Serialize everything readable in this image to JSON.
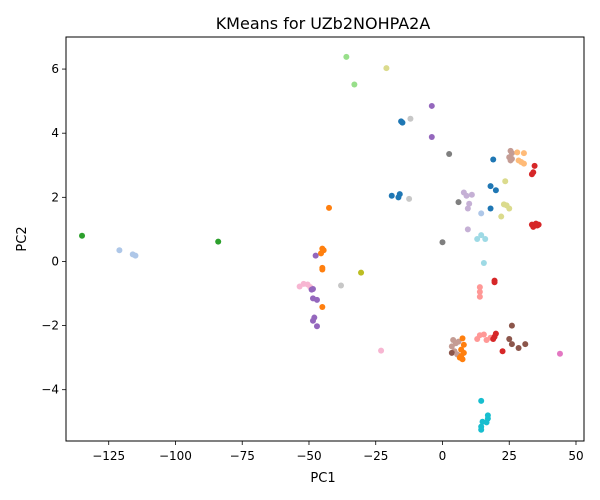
{
  "chart_data": {
    "type": "scatter",
    "title": "KMeans for UZb2NOHPA2A",
    "xlabel": "PC1",
    "ylabel": "PC2",
    "xlim": [
      -141,
      53
    ],
    "ylim": [
      -5.6,
      7.0
    ],
    "xticks": [
      -125,
      -100,
      -75,
      -50,
      -25,
      0,
      25,
      50
    ],
    "yticks": [
      -4,
      -2,
      0,
      2,
      4,
      6
    ],
    "xtick_labels": [
      "−125",
      "−100",
      "−75",
      "−50",
      "−25",
      "0",
      "25",
      "50"
    ],
    "ytick_labels": [
      "−4",
      "−2",
      "0",
      "2",
      "4",
      "6"
    ],
    "grid": false,
    "marker_size": 3,
    "points": [
      {
        "x": -135,
        "y": 0.8,
        "color": "#2ca02c"
      },
      {
        "x": -84,
        "y": 0.62,
        "color": "#2ca02c"
      },
      {
        "x": -121,
        "y": 0.35,
        "color": "#aec7e8"
      },
      {
        "x": -116,
        "y": 0.22,
        "color": "#aec7e8"
      },
      {
        "x": -115,
        "y": 0.18,
        "color": "#aec7e8"
      },
      {
        "x": -36,
        "y": 6.38,
        "color": "#98df8a"
      },
      {
        "x": -21,
        "y": 6.03,
        "color": "#dbdb8d"
      },
      {
        "x": -33,
        "y": 5.52,
        "color": "#98df8a"
      },
      {
        "x": -4,
        "y": 4.85,
        "color": "#9467bd"
      },
      {
        "x": -4,
        "y": 3.88,
        "color": "#9467bd"
      },
      {
        "x": -15.5,
        "y": 4.37,
        "color": "#1f77b4"
      },
      {
        "x": -15,
        "y": 4.33,
        "color": "#1f77b4"
      },
      {
        "x": -12,
        "y": 4.45,
        "color": "#c7c7c7"
      },
      {
        "x": 2.5,
        "y": 3.35,
        "color": "#7f7f7f"
      },
      {
        "x": -19,
        "y": 2.05,
        "color": "#1f77b4"
      },
      {
        "x": -16,
        "y": 2.1,
        "color": "#1f77b4"
      },
      {
        "x": -16.5,
        "y": 2.0,
        "color": "#1f77b4"
      },
      {
        "x": -12.5,
        "y": 1.95,
        "color": "#c7c7c7"
      },
      {
        "x": -42.5,
        "y": 1.67,
        "color": "#ff7f0e"
      },
      {
        "x": 6,
        "y": 1.85,
        "color": "#7f7f7f"
      },
      {
        "x": 8,
        "y": 2.15,
        "color": "#c5b0d5"
      },
      {
        "x": 9,
        "y": 2.05,
        "color": "#c5b0d5"
      },
      {
        "x": 11,
        "y": 2.08,
        "color": "#c5b0d5"
      },
      {
        "x": 10,
        "y": 1.8,
        "color": "#c5b0d5"
      },
      {
        "x": 9.5,
        "y": 1.65,
        "color": "#c5b0d5"
      },
      {
        "x": 9.5,
        "y": 1.0,
        "color": "#c5b0d5"
      },
      {
        "x": 0,
        "y": 0.6,
        "color": "#7f7f7f"
      },
      {
        "x": 19,
        "y": 3.18,
        "color": "#1f77b4"
      },
      {
        "x": 18,
        "y": 2.35,
        "color": "#1f77b4"
      },
      {
        "x": 20,
        "y": 2.22,
        "color": "#1f77b4"
      },
      {
        "x": 18,
        "y": 1.65,
        "color": "#1f77b4"
      },
      {
        "x": 14.5,
        "y": 1.5,
        "color": "#aec7e8"
      },
      {
        "x": 13,
        "y": 0.7,
        "color": "#9edae5"
      },
      {
        "x": 14.5,
        "y": 0.82,
        "color": "#9edae5"
      },
      {
        "x": 16,
        "y": 0.7,
        "color": "#9edae5"
      },
      {
        "x": 15.5,
        "y": -0.05,
        "color": "#9edae5"
      },
      {
        "x": 23.5,
        "y": 2.5,
        "color": "#dbdb8d"
      },
      {
        "x": 23,
        "y": 1.78,
        "color": "#dbdb8d"
      },
      {
        "x": 24,
        "y": 1.75,
        "color": "#dbdb8d"
      },
      {
        "x": 25,
        "y": 1.65,
        "color": "#dbdb8d"
      },
      {
        "x": 22,
        "y": 1.4,
        "color": "#dbdb8d"
      },
      {
        "x": 25.5,
        "y": 3.45,
        "color": "#c49c94"
      },
      {
        "x": 26,
        "y": 3.38,
        "color": "#c49c94"
      },
      {
        "x": 25,
        "y": 3.25,
        "color": "#c49c94"
      },
      {
        "x": 26,
        "y": 3.2,
        "color": "#c49c94"
      },
      {
        "x": 25.5,
        "y": 3.15,
        "color": "#c49c94"
      },
      {
        "x": 28,
        "y": 3.4,
        "color": "#ffbb78"
      },
      {
        "x": 30.5,
        "y": 3.38,
        "color": "#ffbb78"
      },
      {
        "x": 28.5,
        "y": 3.15,
        "color": "#ffbb78"
      },
      {
        "x": 29.5,
        "y": 3.1,
        "color": "#ffbb78"
      },
      {
        "x": 30.5,
        "y": 3.05,
        "color": "#ffbb78"
      },
      {
        "x": 34.5,
        "y": 2.98,
        "color": "#d62728"
      },
      {
        "x": 33.5,
        "y": 2.72,
        "color": "#d62728"
      },
      {
        "x": 34,
        "y": 2.78,
        "color": "#d62728"
      },
      {
        "x": 33.5,
        "y": 1.15,
        "color": "#d62728"
      },
      {
        "x": 34,
        "y": 1.08,
        "color": "#d62728"
      },
      {
        "x": 35,
        "y": 1.18,
        "color": "#d62728"
      },
      {
        "x": 36,
        "y": 1.15,
        "color": "#d62728"
      },
      {
        "x": 35.5,
        "y": 1.12,
        "color": "#d62728"
      },
      {
        "x": -45,
        "y": 0.4,
        "color": "#ff7f0e"
      },
      {
        "x": -44.5,
        "y": 0.35,
        "color": "#ff7f0e"
      },
      {
        "x": -45.5,
        "y": 0.25,
        "color": "#ff7f0e"
      },
      {
        "x": -47.5,
        "y": 0.18,
        "color": "#9467bd"
      },
      {
        "x": -45,
        "y": -0.2,
        "color": "#ff7f0e"
      },
      {
        "x": -45,
        "y": -0.25,
        "color": "#ff7f0e"
      },
      {
        "x": -30.5,
        "y": -0.35,
        "color": "#bcbd22"
      },
      {
        "x": -53.5,
        "y": -0.78,
        "color": "#f7b6d2"
      },
      {
        "x": -52,
        "y": -0.7,
        "color": "#f7b6d2"
      },
      {
        "x": -50.5,
        "y": -0.72,
        "color": "#f7b6d2"
      },
      {
        "x": -49.5,
        "y": -0.8,
        "color": "#f7b6d2"
      },
      {
        "x": -49,
        "y": -0.88,
        "color": "#9467bd"
      },
      {
        "x": -48.5,
        "y": -0.86,
        "color": "#9467bd"
      },
      {
        "x": -38,
        "y": -0.75,
        "color": "#c7c7c7"
      },
      {
        "x": -48.5,
        "y": -1.15,
        "color": "#9467bd"
      },
      {
        "x": -47,
        "y": -1.2,
        "color": "#9467bd"
      },
      {
        "x": -45,
        "y": -1.42,
        "color": "#ff7f0e"
      },
      {
        "x": -48,
        "y": -1.75,
        "color": "#9467bd"
      },
      {
        "x": -48.5,
        "y": -1.85,
        "color": "#9467bd"
      },
      {
        "x": -47,
        "y": -2.02,
        "color": "#9467bd"
      },
      {
        "x": -23,
        "y": -2.78,
        "color": "#f7b6d2"
      },
      {
        "x": 14,
        "y": -0.8,
        "color": "#ff9896"
      },
      {
        "x": 14,
        "y": -0.95,
        "color": "#ff9896"
      },
      {
        "x": 14,
        "y": -1.1,
        "color": "#ff9896"
      },
      {
        "x": 19.5,
        "y": -0.6,
        "color": "#d62728"
      },
      {
        "x": 19.5,
        "y": -0.65,
        "color": "#d62728"
      },
      {
        "x": 14,
        "y": -2.3,
        "color": "#ff9896"
      },
      {
        "x": 15.5,
        "y": -2.28,
        "color": "#ff9896"
      },
      {
        "x": 13,
        "y": -2.42,
        "color": "#ff9896"
      },
      {
        "x": 16.5,
        "y": -2.45,
        "color": "#ff9896"
      },
      {
        "x": 18,
        "y": -2.38,
        "color": "#ff9896"
      },
      {
        "x": 20,
        "y": -2.25,
        "color": "#d62728"
      },
      {
        "x": 19.5,
        "y": -2.35,
        "color": "#d62728"
      },
      {
        "x": 19,
        "y": -2.42,
        "color": "#d62728"
      },
      {
        "x": 22.5,
        "y": -2.8,
        "color": "#d62728"
      },
      {
        "x": 26,
        "y": -2.0,
        "color": "#8c564b"
      },
      {
        "x": 25,
        "y": -2.42,
        "color": "#8c564b"
      },
      {
        "x": 26,
        "y": -2.58,
        "color": "#8c564b"
      },
      {
        "x": 28.5,
        "y": -2.7,
        "color": "#8c564b"
      },
      {
        "x": 31,
        "y": -2.58,
        "color": "#8c564b"
      },
      {
        "x": 44,
        "y": -2.88,
        "color": "#e377c2"
      },
      {
        "x": 4,
        "y": -2.45,
        "color": "#c49c94"
      },
      {
        "x": 5,
        "y": -2.55,
        "color": "#c49c94"
      },
      {
        "x": 3.5,
        "y": -2.65,
        "color": "#c49c94"
      },
      {
        "x": 6,
        "y": -2.5,
        "color": "#c49c94"
      },
      {
        "x": 4.5,
        "y": -2.8,
        "color": "#c49c94"
      },
      {
        "x": 3.5,
        "y": -2.85,
        "color": "#8c564b"
      },
      {
        "x": 5.5,
        "y": -2.9,
        "color": "#c49c94"
      },
      {
        "x": 7.5,
        "y": -2.4,
        "color": "#ff7f0e"
      },
      {
        "x": 8,
        "y": -2.6,
        "color": "#ff7f0e"
      },
      {
        "x": 7,
        "y": -2.75,
        "color": "#ff7f0e"
      },
      {
        "x": 8,
        "y": -2.85,
        "color": "#ff7f0e"
      },
      {
        "x": 7,
        "y": -2.95,
        "color": "#ff7f0e"
      },
      {
        "x": 6.5,
        "y": -3.0,
        "color": "#ff7f0e"
      },
      {
        "x": 7.5,
        "y": -3.05,
        "color": "#ff7f0e"
      },
      {
        "x": 14.5,
        "y": -4.35,
        "color": "#17becf"
      },
      {
        "x": 17,
        "y": -4.8,
        "color": "#17becf"
      },
      {
        "x": 17,
        "y": -4.9,
        "color": "#17becf"
      },
      {
        "x": 15,
        "y": -5.0,
        "color": "#17becf"
      },
      {
        "x": 16.5,
        "y": -5.02,
        "color": "#17becf"
      },
      {
        "x": 14.5,
        "y": -5.15,
        "color": "#17becf"
      },
      {
        "x": 14.5,
        "y": -5.25,
        "color": "#17becf"
      }
    ]
  }
}
